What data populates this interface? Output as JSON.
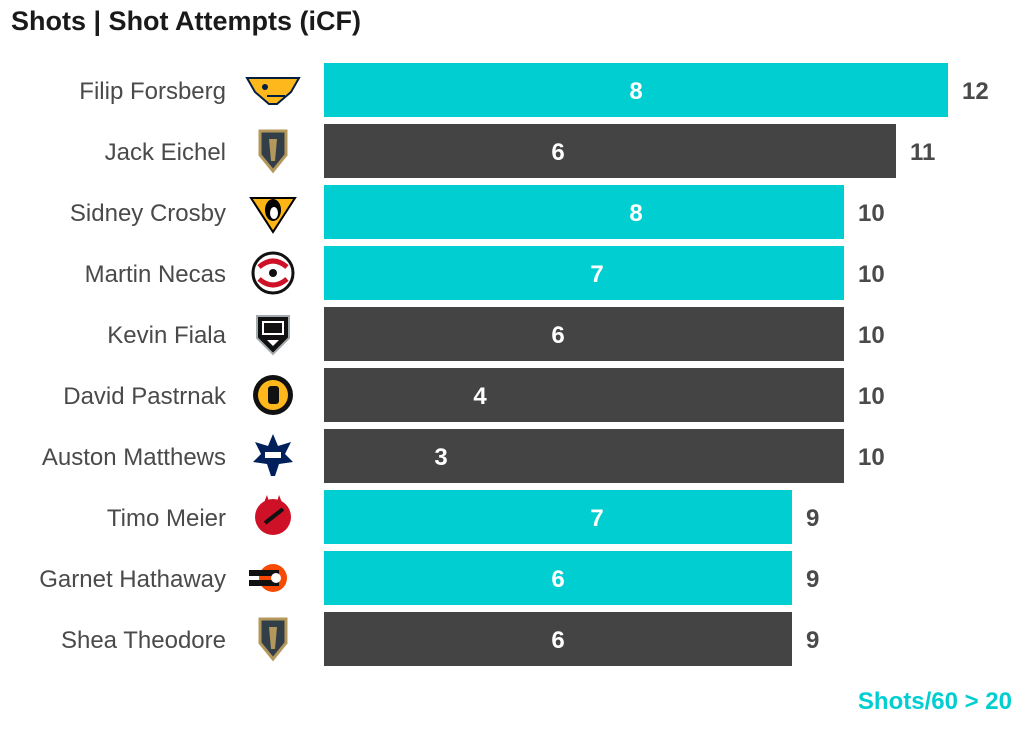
{
  "title": "Shots | Shot Attempts (iCF)",
  "legend": {
    "label": "Shots/60 > 20",
    "color": "#00CED1"
  },
  "colors": {
    "highlight": "#00CED1",
    "default": "#444444",
    "label_text": "#4a4a4a",
    "bar_text": "#ffffff"
  },
  "chart_data": {
    "type": "bar",
    "orientation": "horizontal",
    "title": "Shots | Shot Attempts (iCF)",
    "categories": [
      "Filip Forsberg",
      "Jack Eichel",
      "Sidney Crosby",
      "Martin Necas",
      "Kevin Fiala",
      "David Pastrnak",
      "Auston Matthews",
      "Timo Meier",
      "Garnet Hathaway",
      "Shea Theodore"
    ],
    "series": [
      {
        "name": "Shots",
        "values": [
          8,
          6,
          8,
          7,
          6,
          4,
          3,
          7,
          6,
          6
        ]
      },
      {
        "name": "Shot Attempts (iCF)",
        "values": [
          12,
          11,
          10,
          10,
          10,
          10,
          10,
          9,
          9,
          9
        ]
      }
    ],
    "highlight": [
      true,
      false,
      true,
      true,
      false,
      false,
      false,
      true,
      true,
      false
    ],
    "teams": [
      "predators-logo",
      "golden-knights-logo",
      "penguins-logo",
      "hurricanes-logo",
      "kings-logo",
      "bruins-logo",
      "maple-leafs-logo",
      "devils-logo",
      "flyers-logo",
      "golden-knights-logo"
    ],
    "xlim": [
      0,
      12
    ],
    "grid": false,
    "legend_position": "bottom-right"
  }
}
